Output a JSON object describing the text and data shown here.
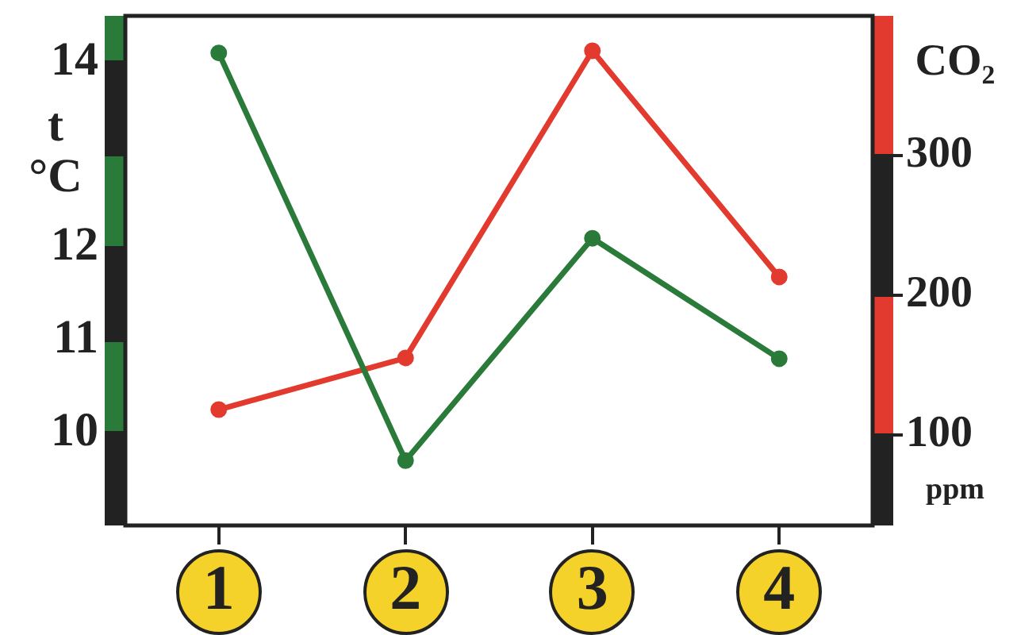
{
  "chart_data": {
    "type": "line",
    "categories": [
      "1",
      "2",
      "3",
      "4"
    ],
    "series": [
      {
        "color": "#2a7a3a",
        "values": [
          14.1,
          9.7,
          12.1,
          10.8
        ]
      },
      {
        "color": "#e23a2e",
        "values": [
          118,
          155,
          375,
          213
        ],
        "axis": "y2"
      }
    ],
    "ylabel": "t °C",
    "y2label": "CO₂",
    "annotations": [
      "ppm"
    ],
    "ylim": [
      9,
      14.5
    ],
    "yticks": [
      10,
      11,
      12,
      {
        "value": 13,
        "label": null
      },
      14
    ],
    "y2lim": [
      35,
      400
    ],
    "y2ticks": [
      100,
      200,
      300
    ],
    "grid": false,
    "legend": false,
    "marker": "circle",
    "line_style": "solid"
  }
}
